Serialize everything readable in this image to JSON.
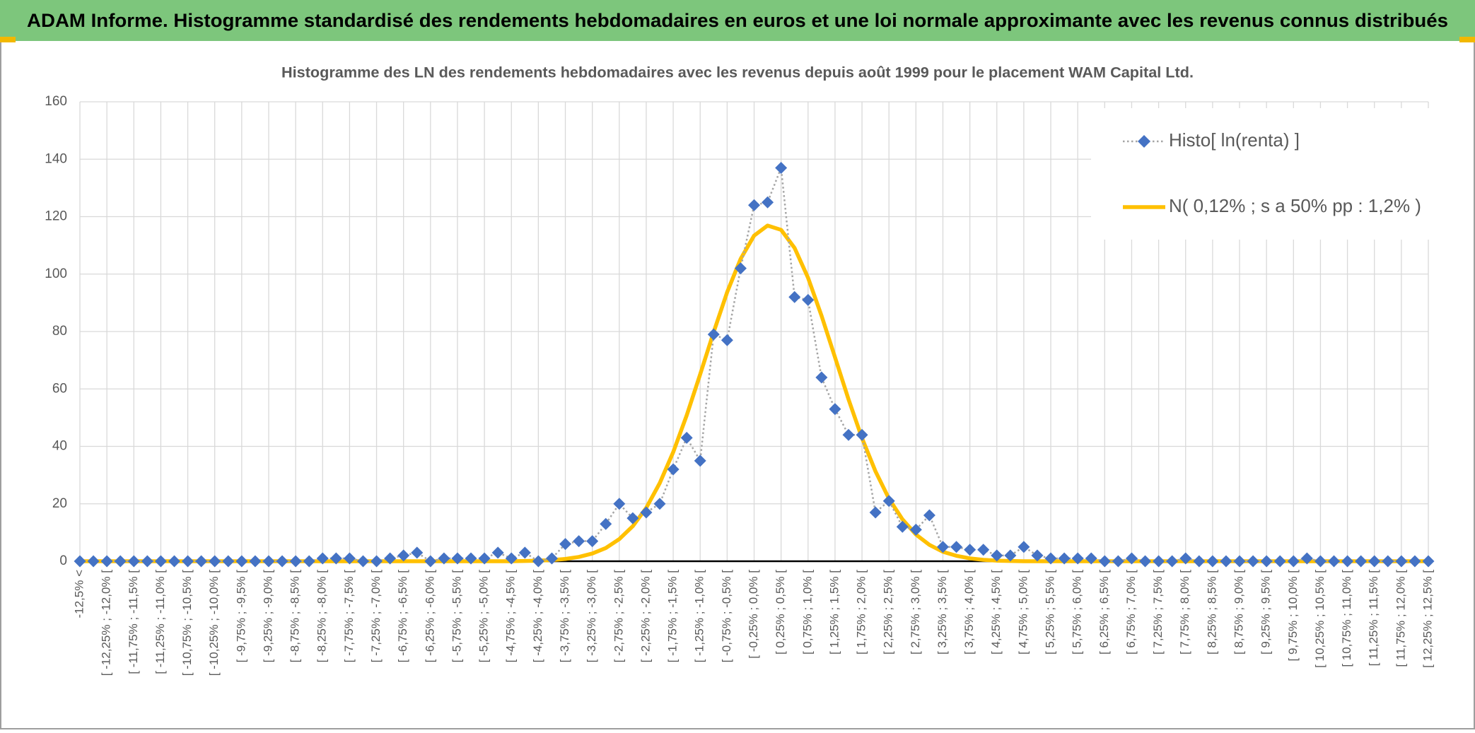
{
  "chart_data": {
    "type": "line",
    "header": "ADAM Informe. Histogramme standardisé des rendements hebdomadaires en euros et une loi normale approximante avec les revenus connus distribués",
    "title": "Histogramme des LN des rendements hebdomadaires avec les revenus depuis août 1999 pour le placement WAM Capital Ltd.",
    "categories": [
      "-12,5% <",
      null,
      "[ -12,25% ; -12,0% [",
      null,
      "[ -11,75% ; -11,5% [",
      null,
      "[ -11,25% ; -11,0% [",
      null,
      "[ -10,75% ; -10,5% [",
      null,
      "[ -10,25% ; -10,0% [",
      null,
      "[ -9,75% ; -9,5% [",
      null,
      "[ -9,25% ; -9,0% [",
      null,
      "[ -8,75% ; -8,5% [",
      null,
      "[ -8,25% ; -8,0% [",
      null,
      "[ -7,75% ; -7,5% [",
      null,
      "[ -7,25% ; -7,0% [",
      null,
      "[ -6,75% ; -6,5% [",
      null,
      "[ -6,25% ; -6,0% [",
      null,
      "[ -5,75% ; -5,5% [",
      null,
      "[ -5,25% ; -5,0% [",
      null,
      "[ -4,75% ; -4,5% [",
      null,
      "[ -4,25% ; -4,0% [",
      null,
      "[ -3,75% ; -3,5% [",
      null,
      "[ -3,25% ; -3,0% [",
      null,
      "[ -2,75% ; -2,5% [",
      null,
      "[ -2,25% ; -2,0% [",
      null,
      "[ -1,75% ; -1,5% [",
      null,
      "[ -1,25% ; -1,0% [",
      null,
      "[ -0,75% ; -0,5% [",
      null,
      "[ -0,25% ; 0,0% [",
      null,
      "[ 0,25% ; 0,5% [",
      null,
      "[ 0,75% ; 1,0% [",
      null,
      "[ 1,25% ; 1,5% [",
      null,
      "[ 1,75% ; 2,0% [",
      null,
      "[ 2,25% ; 2,5% [",
      null,
      "[ 2,75% ; 3,0% [",
      null,
      "[ 3,25% ; 3,5% [",
      null,
      "[ 3,75% ; 4,0% [",
      null,
      "[ 4,25% ; 4,5% [",
      null,
      "[ 4,75% ; 5,0% [",
      null,
      "[ 5,25% ; 5,5% [",
      null,
      "[ 5,75% ; 6,0% [",
      null,
      "[ 6,25% ; 6,5% [",
      null,
      "[ 6,75% ; 7,0% [",
      null,
      "[ 7,25% ; 7,5% [",
      null,
      "[ 7,75% ; 8,0% [",
      null,
      "[ 8,25% ; 8,5% [",
      null,
      "[ 8,75% ; 9,0% [",
      null,
      "[ 9,25% ; 9,5% [",
      null,
      "[ 9,75% ; 10,0% [",
      null,
      "[ 10,25% ; 10,5% [",
      null,
      "[ 10,75% ; 11,0% [",
      null,
      "[ 11,25% ; 11,5% [",
      null,
      "[ 11,75% ; 12,0% [",
      null,
      "[ 12,25% ; 12,5% ["
    ],
    "series": [
      {
        "name": "Histo[ ln(renta) ]",
        "color": "#4472c4",
        "line_color": "#a5a5a5",
        "style": "dotted-markers",
        "values": [
          0,
          0,
          0,
          0,
          0,
          0,
          0,
          0,
          0,
          0,
          0,
          0,
          0,
          0,
          0,
          0,
          0,
          0,
          1,
          1,
          1,
          0,
          0,
          1,
          2,
          3,
          0,
          1,
          1,
          1,
          1,
          3,
          1,
          3,
          0,
          1,
          6,
          7,
          7,
          13,
          20,
          15,
          17,
          20,
          32,
          43,
          35,
          79,
          77,
          102,
          124,
          125,
          137,
          92,
          91,
          64,
          53,
          44,
          44,
          17,
          21,
          12,
          11,
          16,
          5,
          5,
          4,
          4,
          2,
          2,
          5,
          2,
          1,
          1,
          1,
          1,
          0,
          0,
          1,
          0,
          0,
          0,
          1,
          0,
          0,
          0,
          0,
          0,
          0,
          0,
          0,
          1,
          0,
          0,
          0,
          0,
          0,
          0,
          0,
          0,
          0
        ]
      },
      {
        "name": "N( 0,12% ; s a 50% pp : 1,2% )",
        "color": "#ffc000",
        "style": "solid",
        "values": [
          0,
          0,
          0,
          0,
          0,
          0,
          0,
          0,
          0,
          0,
          0,
          0,
          0,
          0,
          0,
          0,
          0,
          0,
          0,
          0,
          0,
          0,
          0,
          0,
          0,
          0,
          0,
          0,
          0,
          0,
          0,
          0,
          0,
          0.1,
          0.2,
          0.4,
          0.8,
          1.5,
          2.7,
          4.6,
          7.7,
          12.2,
          18.6,
          27.2,
          38.0,
          50.8,
          65.1,
          79.8,
          93.7,
          105.3,
          113.4,
          116.9,
          115.4,
          109.1,
          98.7,
          85.5,
          71.0,
          56.4,
          42.9,
          31.3,
          21.8,
          14.6,
          9.3,
          5.7,
          3.3,
          1.9,
          1.0,
          0.5,
          0.2,
          0.1,
          0,
          0,
          0,
          0,
          0,
          0,
          0,
          0,
          0,
          0,
          0,
          0,
          0,
          0,
          0,
          0,
          0,
          0,
          0,
          0,
          0,
          0,
          0,
          0,
          0,
          0,
          0,
          0,
          0,
          0,
          0
        ]
      }
    ],
    "ylim": [
      0,
      160
    ],
    "yticks": [
      0,
      20,
      40,
      60,
      80,
      100,
      120,
      140,
      160
    ],
    "grid": true,
    "legend": "top-right"
  }
}
